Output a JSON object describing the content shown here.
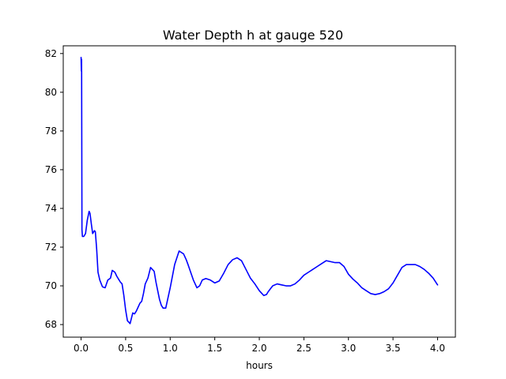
{
  "chart_data": {
    "type": "line",
    "title": "Water Depth h at gauge 520",
    "xlabel": "hours",
    "ylabel": "",
    "xlim": [
      -0.2,
      4.2
    ],
    "ylim": [
      67.35,
      82.4
    ],
    "grid": false,
    "legend": "none",
    "x_ticks": [
      0.0,
      0.5,
      1.0,
      1.5,
      2.0,
      2.5,
      3.0,
      3.5,
      4.0
    ],
    "x_tick_labels": [
      "0.0",
      "0.5",
      "1.0",
      "1.5",
      "2.0",
      "2.5",
      "3.0",
      "3.5",
      "4.0"
    ],
    "y_ticks": [
      68,
      70,
      72,
      74,
      76,
      78,
      80,
      82
    ],
    "y_tick_labels": [
      "68",
      "70",
      "72",
      "74",
      "76",
      "78",
      "80",
      "82"
    ],
    "series": [
      {
        "color": "#0000ff",
        "x": [
          0.0,
          0.003,
          0.006,
          0.01,
          0.015,
          0.03,
          0.05,
          0.07,
          0.09,
          0.1,
          0.115,
          0.13,
          0.15,
          0.16,
          0.175,
          0.19,
          0.21,
          0.24,
          0.27,
          0.3,
          0.33,
          0.35,
          0.38,
          0.4,
          0.42,
          0.44,
          0.46,
          0.48,
          0.5,
          0.52,
          0.55,
          0.58,
          0.6,
          0.62,
          0.64,
          0.66,
          0.68,
          0.7,
          0.72,
          0.75,
          0.78,
          0.8,
          0.82,
          0.84,
          0.86,
          0.88,
          0.9,
          0.92,
          0.95,
          1.0,
          1.05,
          1.1,
          1.15,
          1.18,
          1.2,
          1.23,
          1.26,
          1.3,
          1.33,
          1.36,
          1.4,
          1.45,
          1.5,
          1.55,
          1.6,
          1.65,
          1.7,
          1.75,
          1.8,
          1.85,
          1.9,
          1.95,
          2.0,
          2.05,
          2.08,
          2.1,
          2.15,
          2.2,
          2.25,
          2.3,
          2.35,
          2.4,
          2.45,
          2.5,
          2.55,
          2.6,
          2.65,
          2.7,
          2.75,
          2.8,
          2.85,
          2.9,
          2.95,
          3.0,
          3.05,
          3.1,
          3.15,
          3.2,
          3.25,
          3.3,
          3.35,
          3.4,
          3.45,
          3.5,
          3.55,
          3.6,
          3.65,
          3.7,
          3.75,
          3.8,
          3.85,
          3.9,
          3.95,
          4.0
        ],
        "y": [
          81.8,
          81.1,
          81.7,
          72.9,
          72.55,
          72.55,
          72.7,
          73.4,
          73.85,
          73.75,
          73.2,
          72.7,
          72.85,
          72.8,
          71.9,
          70.7,
          70.3,
          69.95,
          69.9,
          70.3,
          70.4,
          70.8,
          70.7,
          70.5,
          70.35,
          70.2,
          70.1,
          69.5,
          68.75,
          68.2,
          68.05,
          68.6,
          68.55,
          68.7,
          68.9,
          69.1,
          69.2,
          69.6,
          70.1,
          70.4,
          70.95,
          70.85,
          70.75,
          70.2,
          69.75,
          69.3,
          69.0,
          68.85,
          68.85,
          69.9,
          71.1,
          71.8,
          71.65,
          71.35,
          71.1,
          70.7,
          70.3,
          69.9,
          70.0,
          70.3,
          70.38,
          70.3,
          70.15,
          70.25,
          70.65,
          71.1,
          71.35,
          71.45,
          71.3,
          70.85,
          70.4,
          70.1,
          69.75,
          69.5,
          69.55,
          69.7,
          70.0,
          70.1,
          70.05,
          70.0,
          70.0,
          70.1,
          70.3,
          70.55,
          70.7,
          70.85,
          71.0,
          71.15,
          71.3,
          71.25,
          71.2,
          71.2,
          71.0,
          70.6,
          70.35,
          70.15,
          69.9,
          69.75,
          69.6,
          69.55,
          69.6,
          69.7,
          69.85,
          70.15,
          70.55,
          70.95,
          71.1,
          71.1,
          71.1,
          71.0,
          70.85,
          70.65,
          70.4,
          70.05
        ]
      }
    ]
  }
}
